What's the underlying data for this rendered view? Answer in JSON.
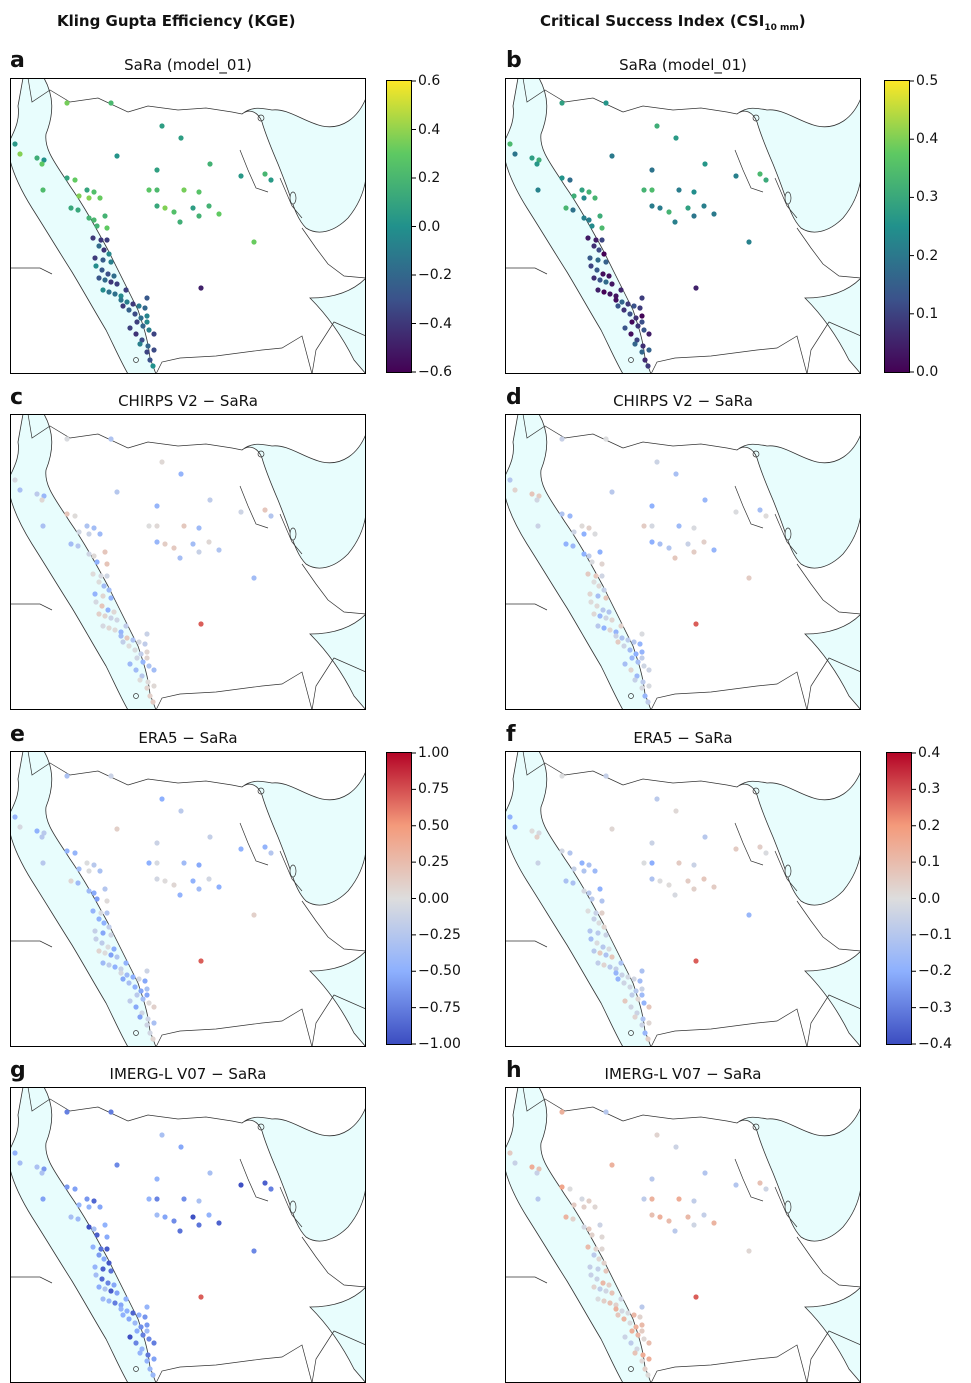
{
  "headers": {
    "left": "Kling Gupta Efficiency (KGE)",
    "right_main": "Critical Success Index (CSI",
    "right_sub": "10 mm",
    "right_close": ")"
  },
  "panels": [
    {
      "letter": "a",
      "title": "SaRa (model_01)",
      "scale": "viridis",
      "vmin": -0.6,
      "vmax": 0.6
    },
    {
      "letter": "b",
      "title": "SaRa (model_01)",
      "scale": "viridis",
      "vmin": 0.0,
      "vmax": 0.5
    },
    {
      "letter": "c",
      "title": "CHIRPS V2 − SaRa",
      "scale": "coolwarm",
      "vmin": -1.0,
      "vmax": 1.0
    },
    {
      "letter": "d",
      "title": "CHIRPS V2 − SaRa",
      "scale": "coolwarm",
      "vmin": -0.4,
      "vmax": 0.4
    },
    {
      "letter": "e",
      "title": "ERA5 − SaRa",
      "scale": "coolwarm",
      "vmin": -1.0,
      "vmax": 1.0
    },
    {
      "letter": "f",
      "title": "ERA5 − SaRa",
      "scale": "coolwarm",
      "vmin": -0.4,
      "vmax": 0.4
    },
    {
      "letter": "g",
      "title": "IMERG-L V07 − SaRa",
      "scale": "coolwarm",
      "vmin": -1.0,
      "vmax": 1.0
    },
    {
      "letter": "h",
      "title": "IMERG-L V07 − SaRa",
      "scale": "coolwarm",
      "vmin": -0.4,
      "vmax": 0.4
    }
  ],
  "colorbars": [
    {
      "id": "kge-abs",
      "scale": "viridis",
      "ticks": [
        "0.6",
        "0.4",
        "0.2",
        "0.0",
        "−0.2",
        "−0.4",
        "−0.6"
      ]
    },
    {
      "id": "csi-abs",
      "scale": "viridis",
      "ticks": [
        "0.5",
        "0.4",
        "0.3",
        "0.2",
        "0.1",
        "0.0"
      ]
    },
    {
      "id": "kge-diff",
      "scale": "coolwarm",
      "ticks": [
        "1.00",
        "0.75",
        "0.50",
        "0.25",
        "0.00",
        "−0.25",
        "−0.50",
        "−0.75",
        "−1.00"
      ]
    },
    {
      "id": "csi-diff",
      "scale": "coolwarm",
      "ticks": [
        "0.4",
        "0.3",
        "0.2",
        "0.1",
        "0.0",
        "−0.1",
        "−0.2",
        "−0.3",
        "−0.4"
      ]
    }
  ],
  "colors": {
    "sea": "#e8fdfd",
    "border": "#333333"
  }
}
